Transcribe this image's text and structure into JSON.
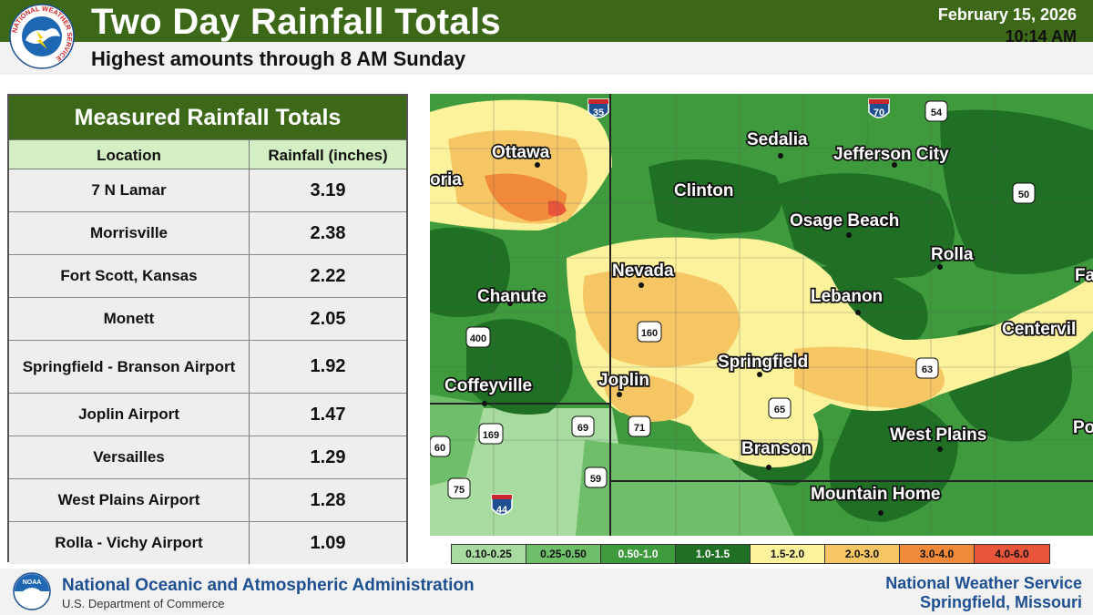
{
  "header": {
    "title": "Two Day Rainfall Totals",
    "subtitle": "Highest amounts through 8 AM Sunday",
    "date": "February 15, 2026",
    "time": "10:14 AM",
    "logo_text": "NATIONAL WEATHER SERVICE"
  },
  "table": {
    "title": "Measured Rainfall Totals",
    "col_location": "Location",
    "col_rainfall": "Rainfall (inches)",
    "rows": [
      {
        "location": "7 N Lamar",
        "rainfall": "3.19"
      },
      {
        "location": "Morrisville",
        "rainfall": "2.38"
      },
      {
        "location": "Fort Scott, Kansas",
        "rainfall": "2.22"
      },
      {
        "location": "Monett",
        "rainfall": "2.05"
      },
      {
        "location": "Springfield - Branson Airport",
        "rainfall": "1.92"
      },
      {
        "location": "Joplin Airport",
        "rainfall": "1.47"
      },
      {
        "location": "Versailles",
        "rainfall": "1.29"
      },
      {
        "location": "West Plains Airport",
        "rainfall": "1.28"
      },
      {
        "location": "Rolla - Vichy Airport",
        "rainfall": "1.09"
      }
    ]
  },
  "map": {
    "cities": [
      "Ottawa",
      "Sedalia",
      "Jefferson City",
      "Clinton",
      "Osage Beach",
      "Rolla",
      "Nevada",
      "Chanute",
      "Lebanon",
      "Springfield",
      "Joplin",
      "Coffeyville",
      "Branson",
      "West Plains",
      "Mountain Home",
      "Centervil",
      "oria",
      "Fa",
      "Po"
    ],
    "shields": [
      "35",
      "70",
      "54",
      "50",
      "400",
      "160",
      "63",
      "65",
      "69",
      "71",
      "169",
      "60",
      "59",
      "75",
      "44"
    ]
  },
  "legend": {
    "items": [
      {
        "label": "0.10-0.25",
        "color": "#a8dba0"
      },
      {
        "label": "0.25-0.50",
        "color": "#6fbf6a"
      },
      {
        "label": "0.50-1.0",
        "color": "#3e9a3c"
      },
      {
        "label": "1.0-1.5",
        "color": "#1f6f24"
      },
      {
        "label": "1.5-2.0",
        "color": "#fbf29b"
      },
      {
        "label": "2.0-3.0",
        "color": "#f6c665"
      },
      {
        "label": "3.0-4.0",
        "color": "#f08a3a"
      },
      {
        "label": "4.0-6.0",
        "color": "#e9553a"
      }
    ]
  },
  "footer": {
    "noaa_title": "National Oceanic and Atmospheric Administration",
    "noaa_sub": "U.S. Department of Commerce",
    "nws_line1": "National Weather Service",
    "nws_line2": "Springfield, Missouri",
    "noaa_logo_text": "NOAA"
  },
  "colors": {
    "brand_green": "#3c6817",
    "table_header": "#d4efc3",
    "footer_blue": "#1d4f91"
  }
}
